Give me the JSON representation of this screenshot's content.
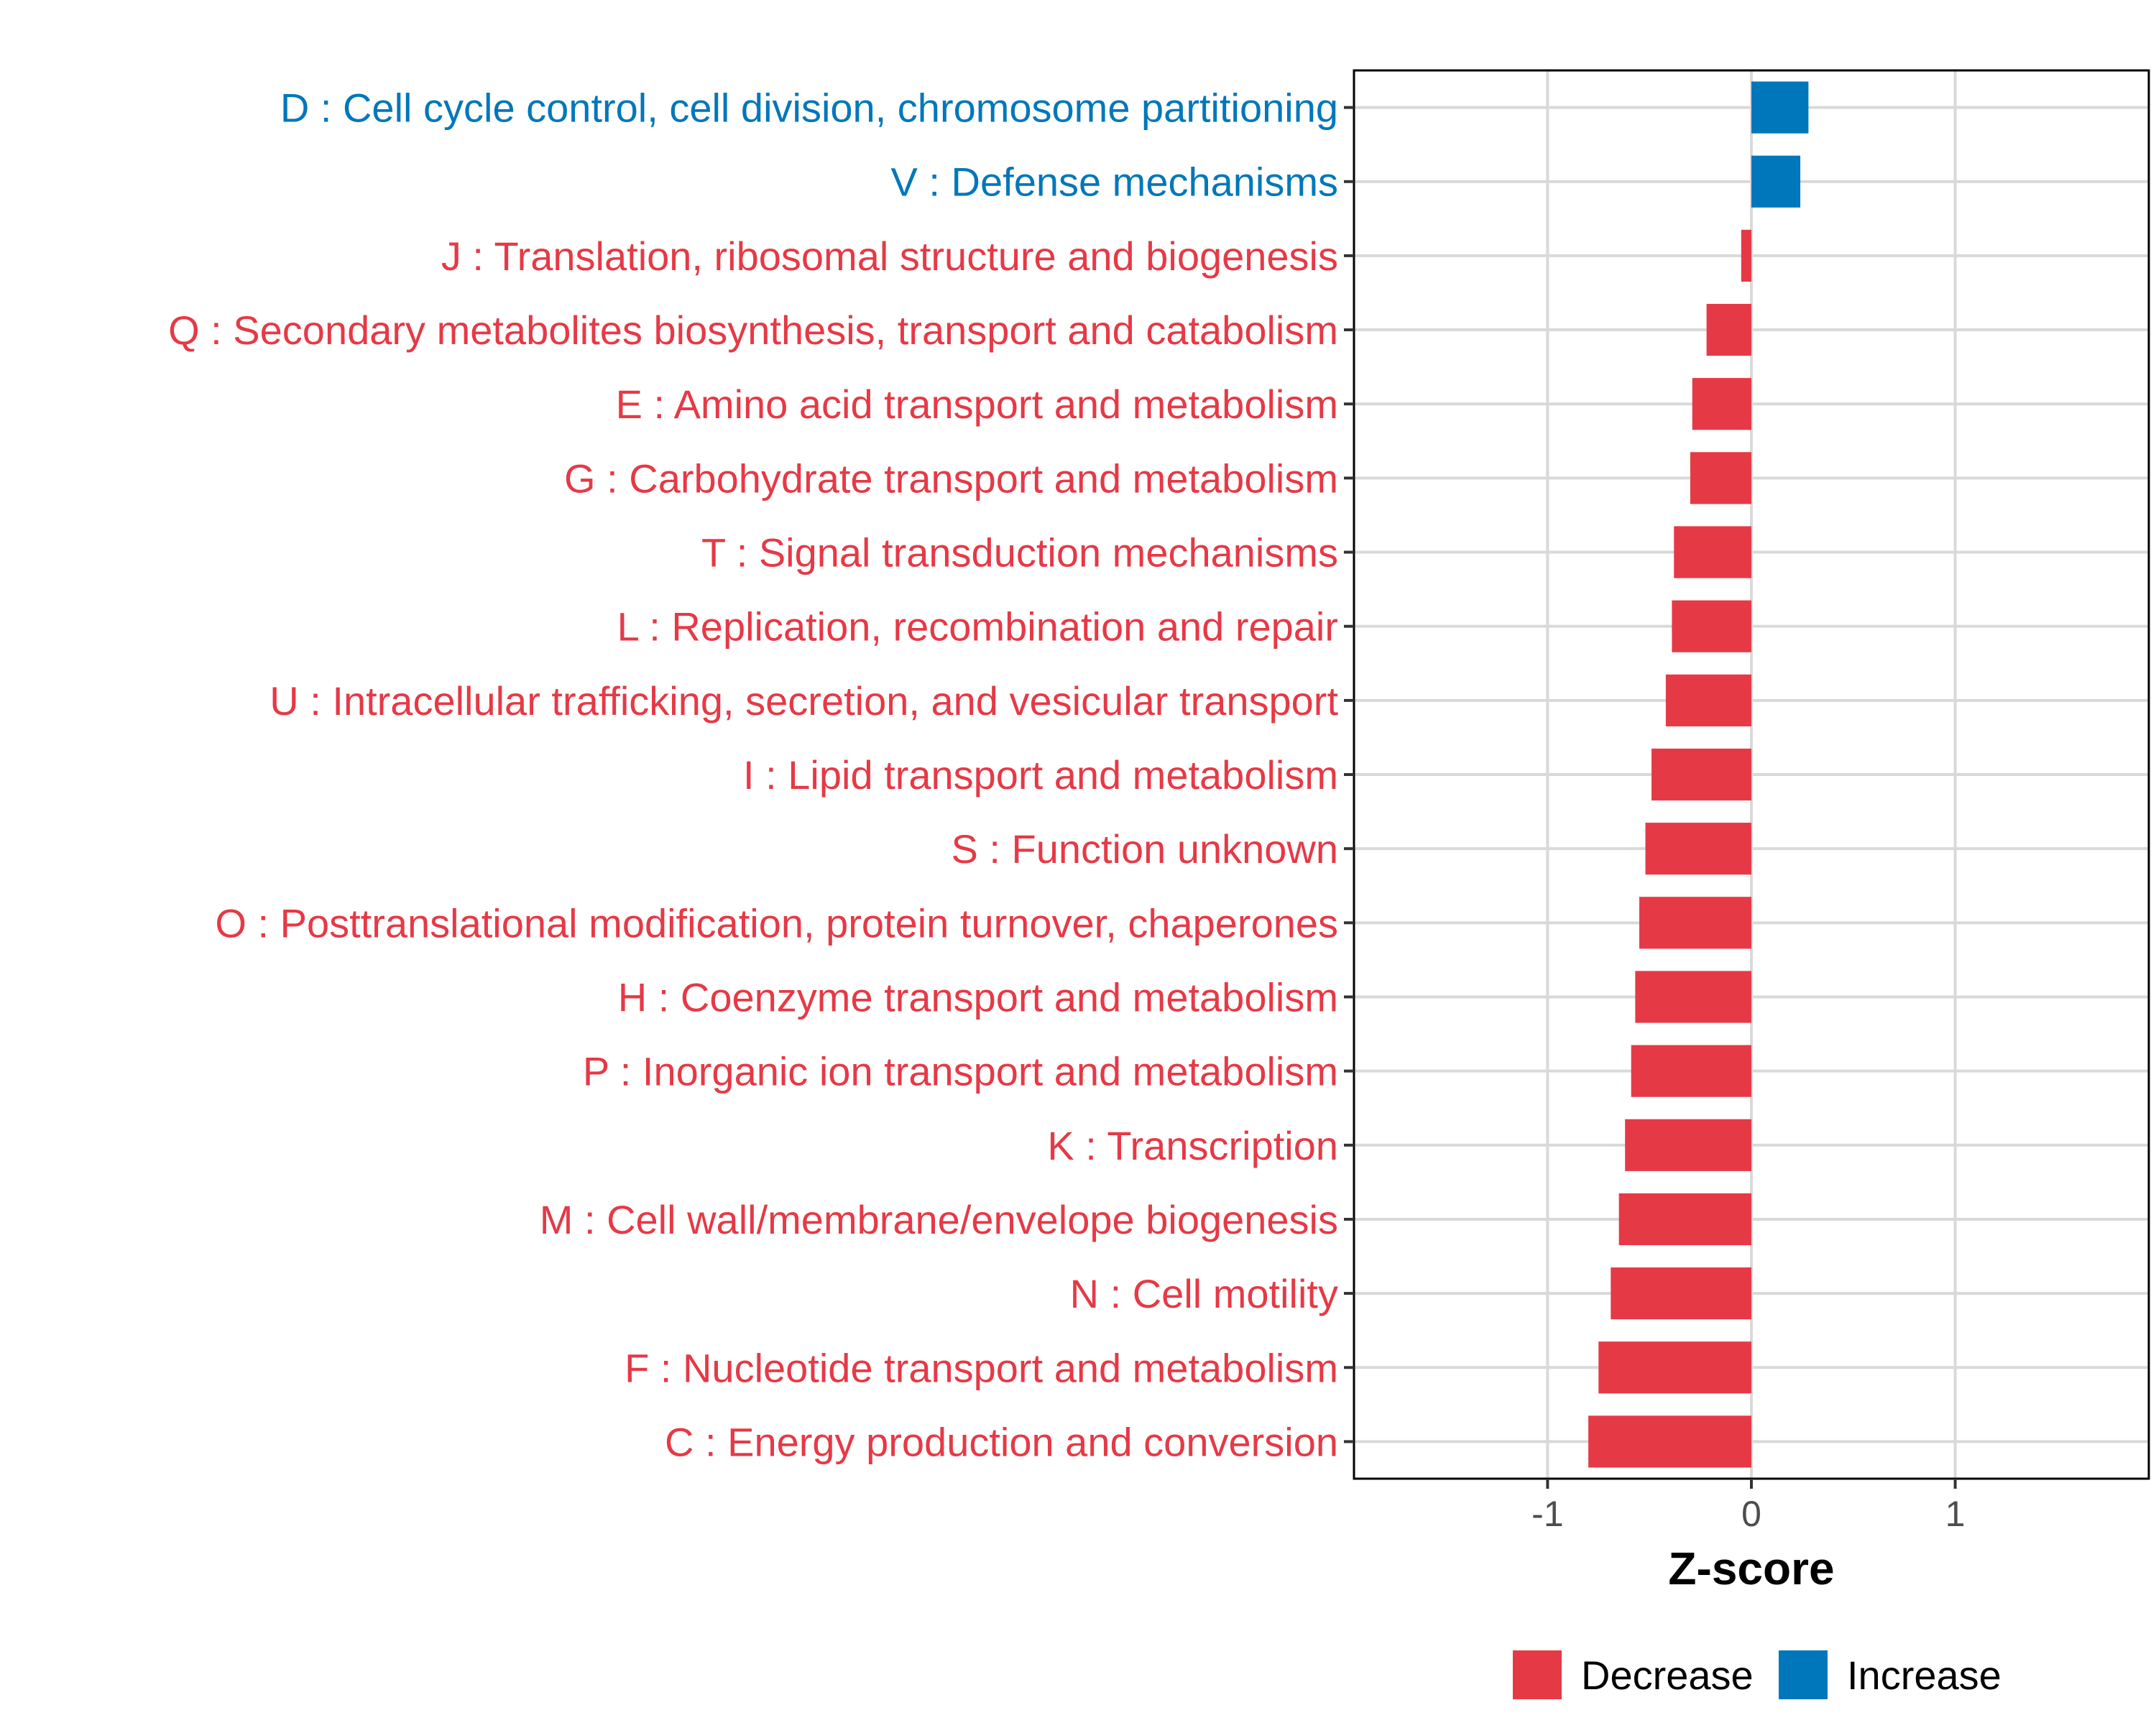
{
  "chart_data": {
    "type": "bar",
    "orientation": "horizontal",
    "title": "",
    "xlabel": "Z-score",
    "ylabel": "",
    "xlim": [
      -1.95,
      1.95
    ],
    "xticks": [
      -1,
      0,
      1
    ],
    "xtick_labels": [
      "-1",
      "0",
      "1"
    ],
    "grid": true,
    "legend_position": "bottom",
    "colors": {
      "Decrease": "#E63946",
      "Increase": "#0077BB"
    },
    "categories": [
      "D : Cell cycle control, cell division, chromosome partitioning",
      "V : Defense mechanisms",
      "J : Translation, ribosomal structure and biogenesis",
      "Q : Secondary metabolites biosynthesis, transport and catabolism",
      "E : Amino acid transport and metabolism",
      "G : Carbohydrate transport and metabolism",
      "T : Signal transduction mechanisms",
      "L : Replication, recombination and repair",
      "U : Intracellular trafficking, secretion, and vesicular transport",
      "I : Lipid transport and metabolism",
      "S : Function unknown",
      "O : Posttranslational modification, protein turnover, chaperones",
      "H : Coenzyme transport and metabolism",
      "P : Inorganic ion transport and metabolism",
      "K : Transcription",
      "M : Cell wall/membrane/envelope biogenesis",
      "N : Cell motility",
      "F : Nucleotide transport and metabolism",
      "C : Energy production and conversion"
    ],
    "values": [
      0.28,
      0.24,
      -0.05,
      -0.22,
      -0.29,
      -0.3,
      -0.38,
      -0.39,
      -0.42,
      -0.49,
      -0.52,
      -0.55,
      -0.57,
      -0.59,
      -0.62,
      -0.65,
      -0.69,
      -0.75,
      -0.8
    ],
    "groups": [
      "Increase",
      "Increase",
      "Decrease",
      "Decrease",
      "Decrease",
      "Decrease",
      "Decrease",
      "Decrease",
      "Decrease",
      "Decrease",
      "Decrease",
      "Decrease",
      "Decrease",
      "Decrease",
      "Decrease",
      "Decrease",
      "Decrease",
      "Decrease",
      "Decrease"
    ],
    "legend": [
      "Decrease",
      "Increase"
    ]
  }
}
